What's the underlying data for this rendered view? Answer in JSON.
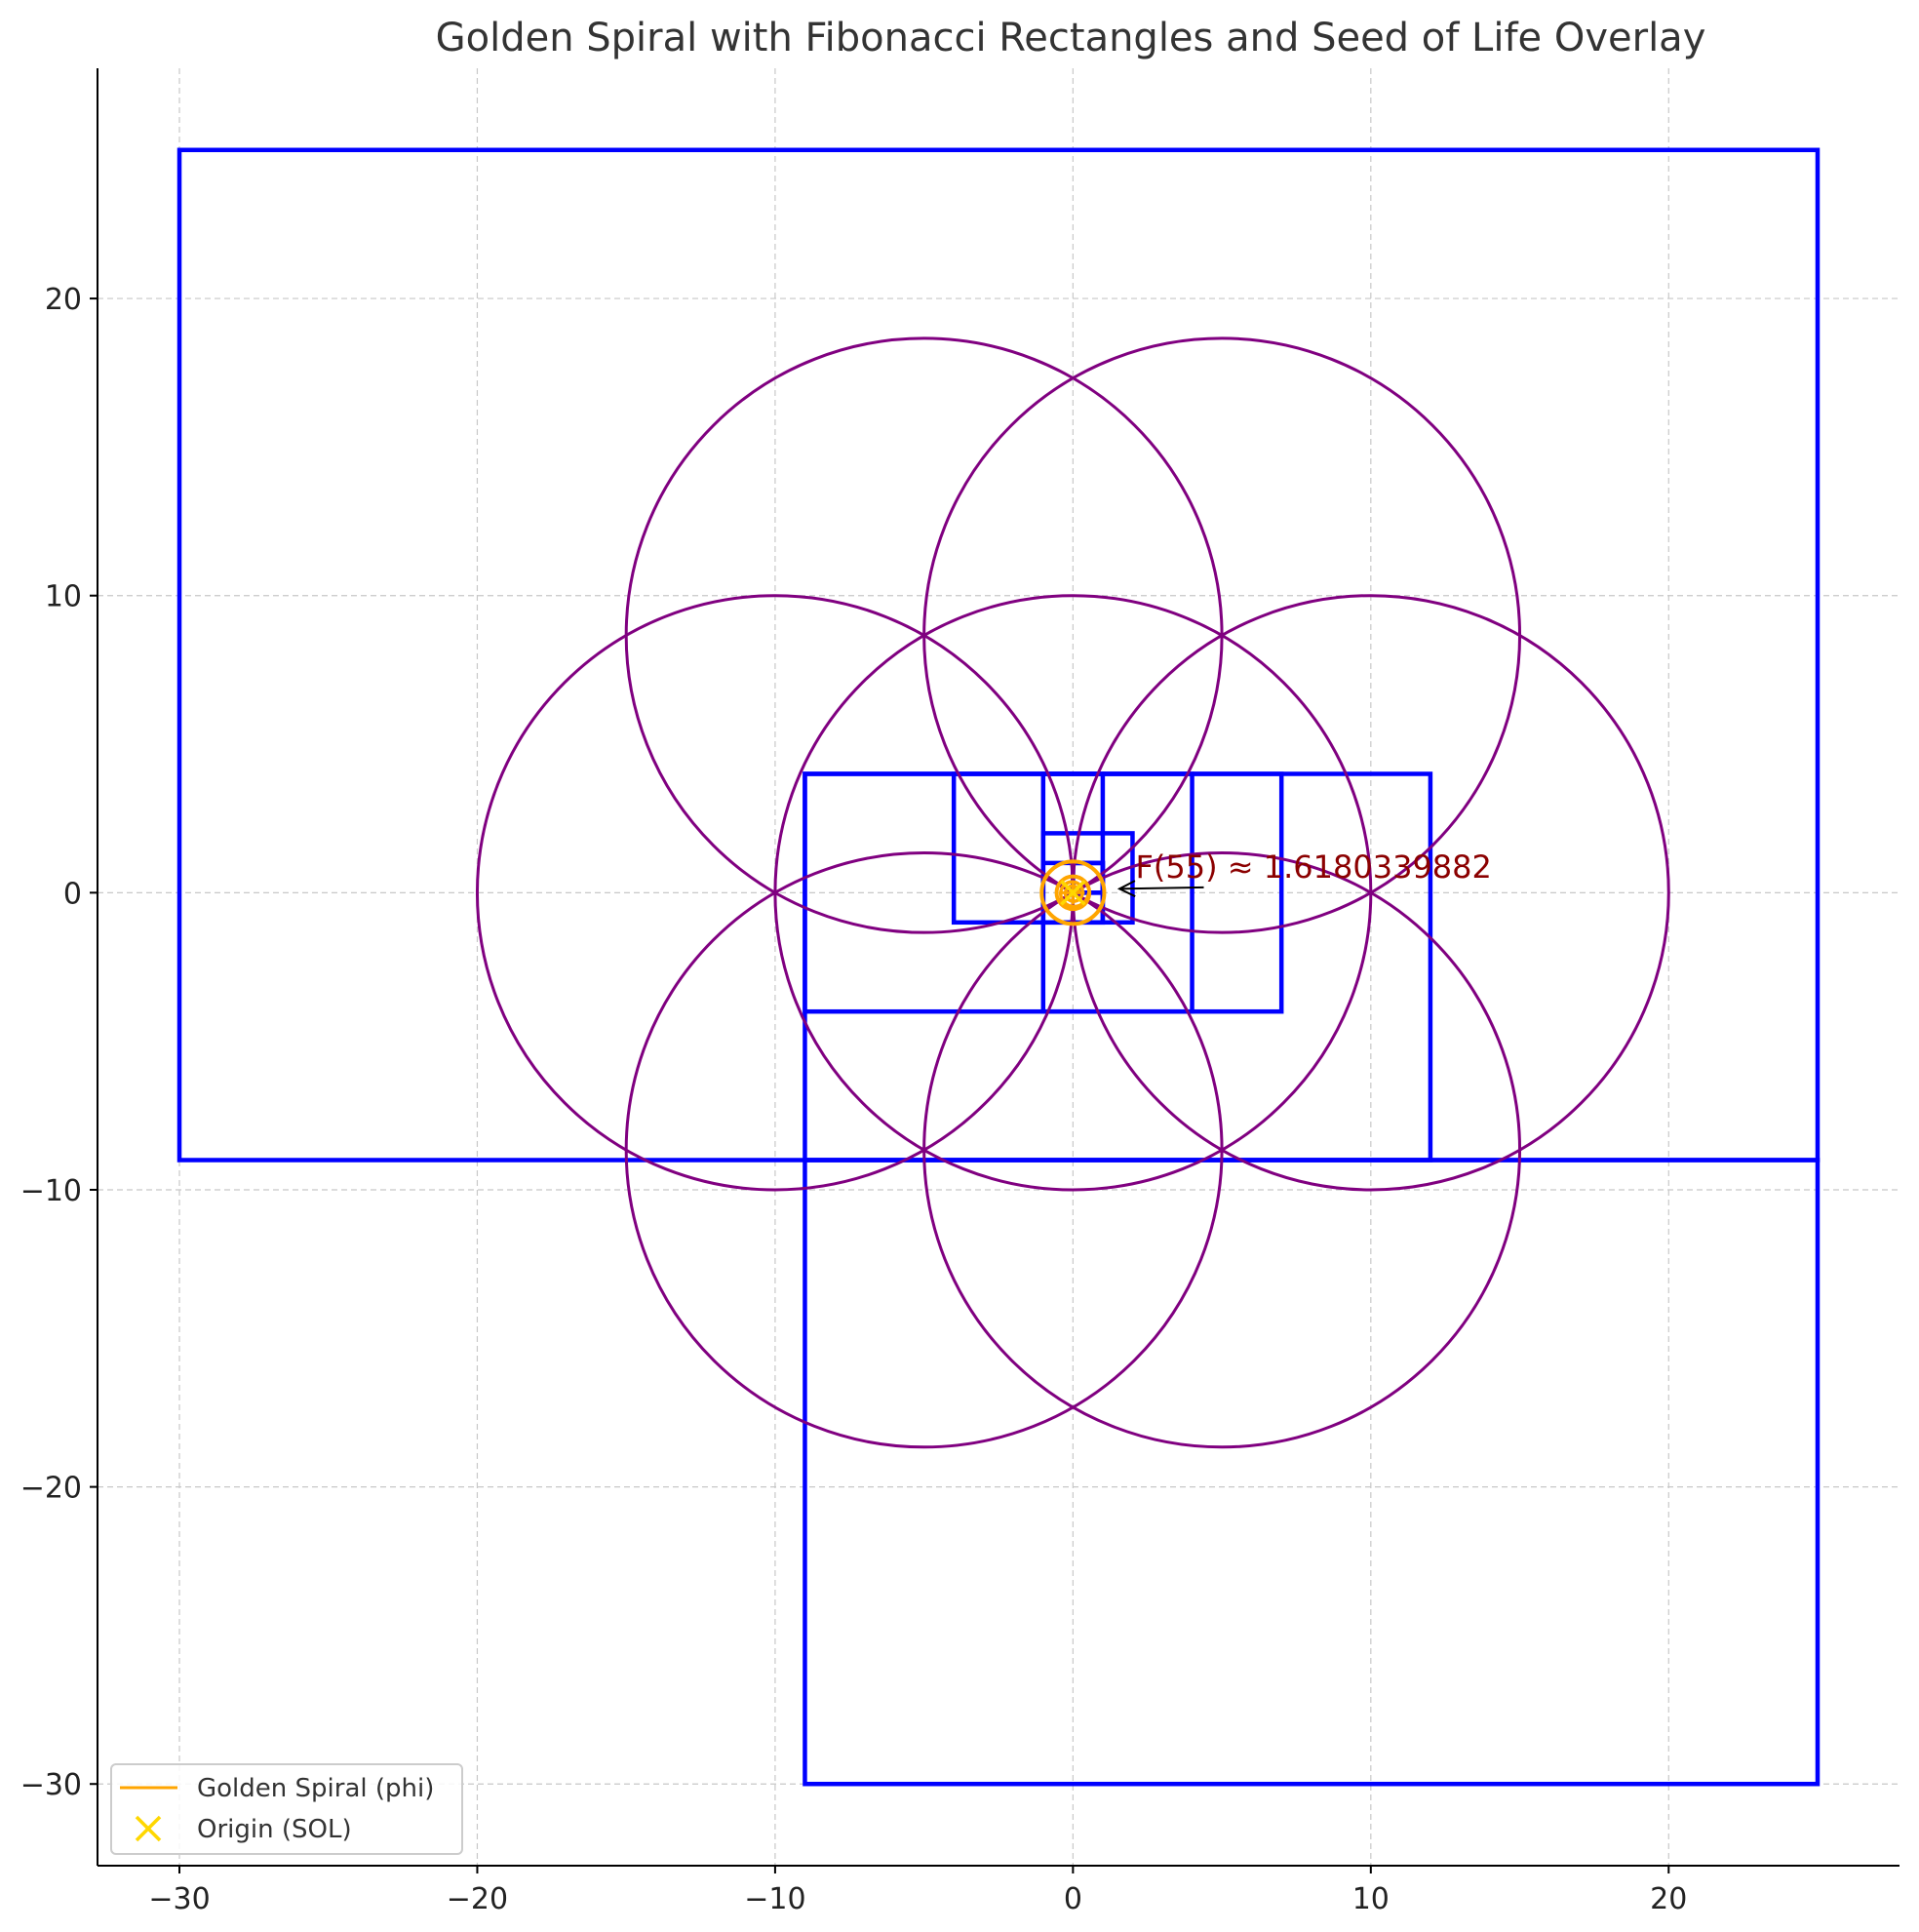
{
  "chart_data": {
    "type": "line",
    "title": "Golden Spiral with Fibonacci Rectangles and Seed of Life Overlay",
    "xlabel": "",
    "ylabel": "",
    "xlim": [
      -32.75,
      27.75
    ],
    "ylim": [
      -32.75,
      27.75
    ],
    "xticks": [
      -30,
      -20,
      -10,
      0,
      10,
      20
    ],
    "yticks": [
      -30,
      -20,
      -10,
      0,
      10,
      20
    ],
    "xtick_labels": [
      "−30",
      "−20",
      "−10",
      "0",
      "10",
      "20"
    ],
    "ytick_labels": [
      "−30",
      "−20",
      "−10",
      "0",
      "10",
      "20"
    ],
    "grid": true,
    "legend_position": "lower-left",
    "colors": {
      "rectangles": "#0000ff",
      "seed_of_life": "#800080",
      "spiral": "#ffa500",
      "origin_marker": "#ffd700",
      "annotation": "#8b0000",
      "grid": "#c8c8c8"
    },
    "fibonacci_rectangles": [
      {
        "x": 0,
        "y": 0,
        "w": 1,
        "h": 1
      },
      {
        "x": 0,
        "y": 0,
        "w": 1,
        "h": 1
      },
      {
        "x": -1,
        "y": -1,
        "w": 2,
        "h": 2
      },
      {
        "x": -1,
        "y": -1,
        "w": 3,
        "h": 3
      },
      {
        "x": -4,
        "y": -1,
        "w": 5,
        "h": 5
      },
      {
        "x": -1,
        "y": -4,
        "w": 8,
        "h": 8
      },
      {
        "x": -9,
        "y": -4,
        "w": 13,
        "h": 8
      },
      {
        "x": -9,
        "y": -9,
        "w": 21,
        "h": 13
      },
      {
        "x": -30,
        "y": -9,
        "w": 55,
        "h": 34
      },
      {
        "x": -9,
        "y": -30,
        "w": 34,
        "h": 21
      }
    ],
    "seed_of_life": {
      "radius": 10,
      "centers": [
        [
          0,
          0
        ],
        [
          10,
          0
        ],
        [
          5,
          8.66
        ],
        [
          -5,
          8.66
        ],
        [
          -10,
          0
        ],
        [
          -5,
          -8.66
        ],
        [
          5,
          -8.66
        ]
      ]
    },
    "series": [
      {
        "name": "Golden Spiral (phi)",
        "type": "line",
        "description_points": "spiral",
        "a": 0.2,
        "b": 0.0766,
        "theta_max": 12.566
      },
      {
        "name": "Origin (SOL)",
        "type": "scatter",
        "points": [
          [
            0,
            0
          ]
        ],
        "marker": "x"
      }
    ],
    "sol_marker_rings": [
      {
        "cx": 0,
        "cy": 0,
        "r": 1.05
      },
      {
        "cx": 0,
        "cy": 0,
        "r": 0.55
      }
    ],
    "annotation": {
      "text": "F(55) ≈ 1.6180339882",
      "xy": [
        1.3,
        0
      ],
      "xytext": [
        2.1,
        0.9
      ]
    }
  }
}
